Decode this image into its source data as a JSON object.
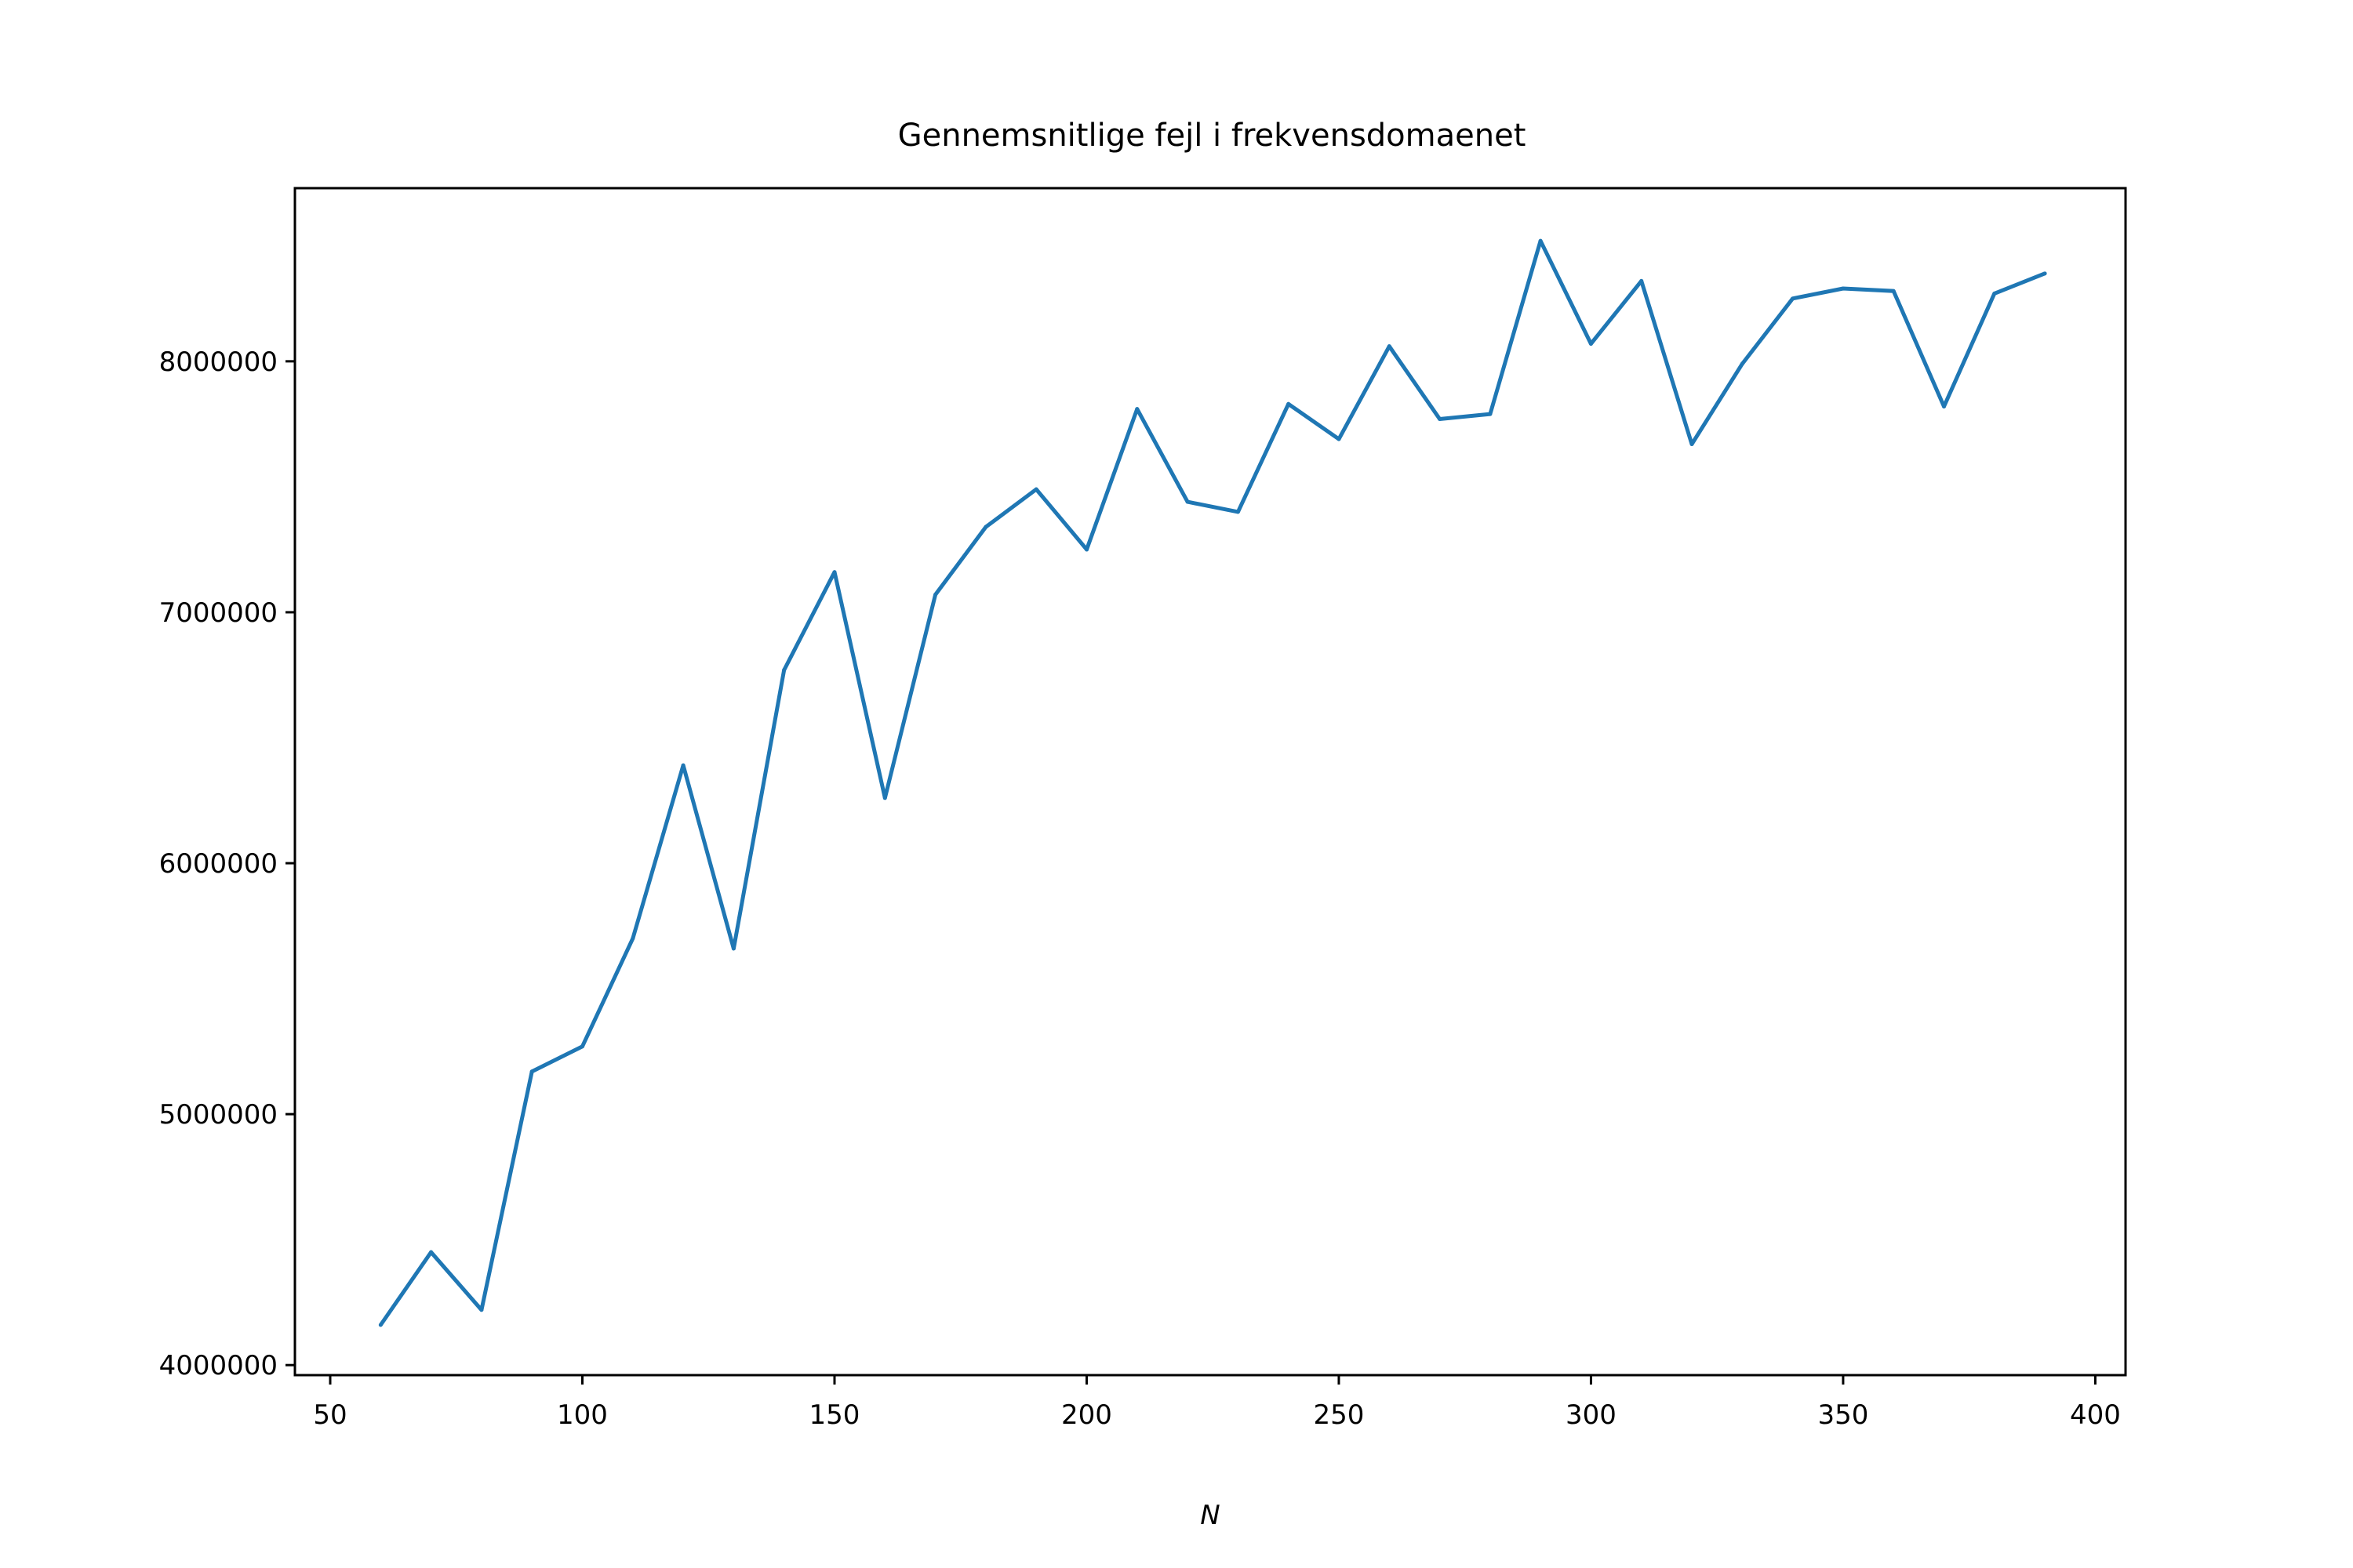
{
  "chart_data": {
    "type": "line",
    "title": "Gennemsnitlige fejl i frekvensdomaenet",
    "xlabel": "N",
    "ylabel": "",
    "xlim": [
      43,
      406
    ],
    "ylim": [
      3960000,
      8690000
    ],
    "xticks": [
      50,
      100,
      150,
      200,
      250,
      300,
      350,
      400
    ],
    "xtick_labels": [
      "50",
      "100",
      "150",
      "200",
      "250",
      "300",
      "350",
      "400"
    ],
    "yticks": [
      4000000,
      5000000,
      6000000,
      7000000,
      8000000
    ],
    "ytick_labels": [
      "4000000",
      "5000000",
      "6000000",
      "7000000",
      "8000000"
    ],
    "grid": false,
    "series": [
      {
        "color": "#1f77b4",
        "x": [
          60,
          70,
          80,
          90,
          100,
          110,
          120,
          130,
          140,
          150,
          160,
          170,
          180,
          190,
          200,
          210,
          220,
          230,
          240,
          250,
          260,
          270,
          280,
          290,
          300,
          310,
          320,
          330,
          340,
          350,
          360,
          370,
          380,
          390
        ],
        "y": [
          4160000,
          4450000,
          4220000,
          5170000,
          5270000,
          5700000,
          6390000,
          5660000,
          6770000,
          7160000,
          6260000,
          7070000,
          7340000,
          7490000,
          7250000,
          7810000,
          7440000,
          7400000,
          7830000,
          7690000,
          8060000,
          7770000,
          7790000,
          8480000,
          8070000,
          8320000,
          7670000,
          7990000,
          8250000,
          8290000,
          8280000,
          7820000,
          8270000,
          8350000
        ]
      }
    ]
  }
}
